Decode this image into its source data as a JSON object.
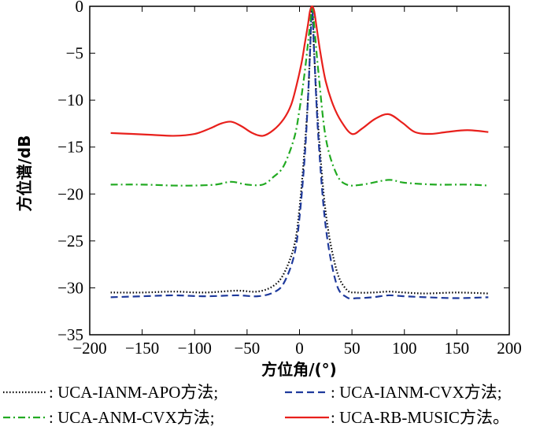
{
  "chart_data": {
    "type": "line",
    "xlabel": "方位角/(°)",
    "ylabel": "方位谱/dB",
    "xlim": [
      -200,
      200
    ],
    "ylim": [
      -35,
      0
    ],
    "xticks": [
      -200,
      -150,
      -100,
      -50,
      0,
      50,
      100,
      150,
      200
    ],
    "yticks": [
      0,
      -5,
      -10,
      -15,
      -20,
      -25,
      -30,
      -35
    ],
    "xtick_labels": [
      "−200",
      "−150",
      "−100",
      "−50",
      "0",
      "50",
      "100",
      "150",
      "200"
    ],
    "ytick_labels": [
      "0",
      "−5",
      "−10",
      "−15",
      "−20",
      "−25",
      "−30",
      "−35"
    ],
    "grid": false,
    "legend_position": "bottom",
    "series": [
      {
        "name": ": UCA-IANM-APO方法;",
        "color": "#000000",
        "style": "dotted",
        "x": [
          -180,
          -150,
          -120,
          -90,
          -60,
          -40,
          -25,
          -15,
          -5,
          0,
          5,
          8,
          10,
          12,
          14,
          18,
          25,
          35,
          45,
          55,
          70,
          85,
          100,
          120,
          150,
          180
        ],
        "y": [
          -30.5,
          -30.5,
          -30.4,
          -30.5,
          -30.3,
          -30.4,
          -29.8,
          -28.5,
          -25.5,
          -21.5,
          -15,
          -10,
          -5,
          0,
          -5,
          -13,
          -22,
          -28,
          -30.2,
          -30.5,
          -30.5,
          -30.4,
          -30.5,
          -30.6,
          -30.5,
          -30.6
        ]
      },
      {
        "name": ": UCA-IANM-CVX方法;",
        "color": "#1f3a9c",
        "style": "dashed",
        "x": [
          -180,
          -150,
          -120,
          -90,
          -60,
          -40,
          -25,
          -15,
          -5,
          0,
          5,
          8,
          10,
          12,
          14,
          18,
          25,
          35,
          45,
          55,
          70,
          85,
          100,
          120,
          150,
          180
        ],
        "y": [
          -31,
          -30.9,
          -30.8,
          -30.9,
          -30.8,
          -30.9,
          -30.5,
          -29.5,
          -26.5,
          -22.5,
          -16,
          -10,
          -5,
          0,
          -5,
          -14,
          -23.5,
          -29.5,
          -31,
          -31.1,
          -31,
          -30.8,
          -30.9,
          -31,
          -31.1,
          -31
        ]
      },
      {
        "name": ": UCA-ANM-CVX方法;",
        "color": "#22aa22",
        "style": "dashdot",
        "x": [
          -180,
          -150,
          -120,
          -100,
          -80,
          -65,
          -50,
          -35,
          -25,
          -15,
          -5,
          0,
          5,
          8,
          10,
          12,
          14,
          18,
          25,
          35,
          45,
          60,
          85,
          100,
          130,
          160,
          180
        ],
        "y": [
          -19,
          -19,
          -19.1,
          -19.1,
          -19,
          -18.7,
          -19,
          -19,
          -18.2,
          -17,
          -14,
          -11,
          -7,
          -4,
          -2,
          0,
          -2,
          -7,
          -14,
          -17.8,
          -19,
          -19,
          -18.5,
          -18.8,
          -19,
          -19,
          -19.1
        ]
      },
      {
        "name": ": UCA-RB-MUSIC方法。",
        "color": "#e8201c",
        "style": "solid",
        "x": [
          -180,
          -160,
          -140,
          -120,
          -100,
          -85,
          -75,
          -65,
          -55,
          -45,
          -35,
          -25,
          -15,
          -8,
          -3,
          2,
          5,
          8,
          10,
          12,
          14,
          16,
          20,
          25,
          32,
          40,
          50,
          60,
          72,
          85,
          98,
          110,
          125,
          140,
          160,
          180
        ],
        "y": [
          -13.5,
          -13.6,
          -13.7,
          -13.8,
          -13.6,
          -13,
          -12.5,
          -12.3,
          -12.8,
          -13.5,
          -13.8,
          -13.2,
          -12,
          -10.5,
          -8.5,
          -6,
          -4,
          -2,
          -0.5,
          0,
          -0.5,
          -2,
          -5,
          -8,
          -10.5,
          -12.3,
          -13.6,
          -13,
          -12,
          -11.5,
          -12.4,
          -13.4,
          -13.6,
          -13.4,
          -13.2,
          -13.4
        ]
      }
    ]
  }
}
